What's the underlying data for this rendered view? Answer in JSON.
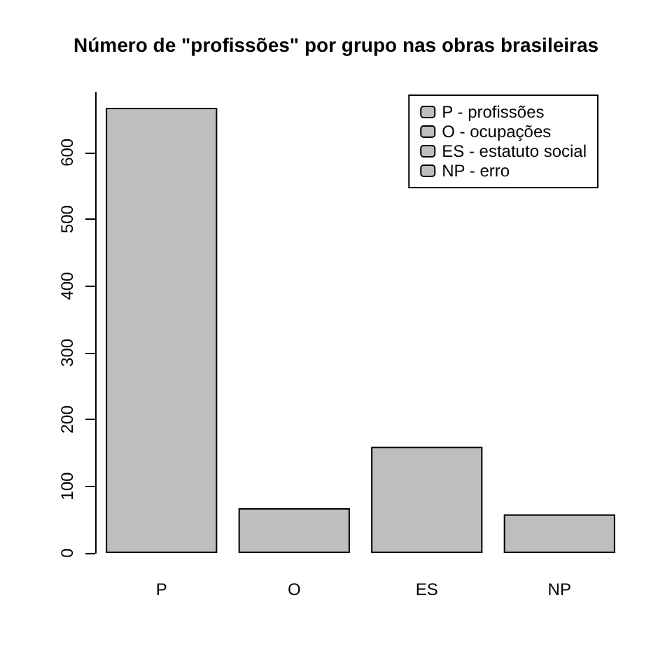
{
  "chart_data": {
    "type": "bar",
    "title": "Número de \"profissões\" por grupo nas obras brasileiras",
    "categories": [
      "P",
      "O",
      "ES",
      "NP"
    ],
    "series": [
      {
        "name": "P - profissões",
        "color": "#bebebe",
        "values": [
          667,
          null,
          null,
          null
        ]
      },
      {
        "name": "O - ocupações",
        "color": "#bebebe",
        "values": [
          null,
          67,
          null,
          null
        ]
      },
      {
        "name": "ES - estatuto social",
        "color": "#bebebe",
        "values": [
          null,
          null,
          159,
          null
        ]
      },
      {
        "name": "NP - erro",
        "color": "#bebebe",
        "values": [
          null,
          null,
          null,
          58
        ]
      }
    ],
    "ylim": [
      0,
      690
    ],
    "yticks": [
      0,
      100,
      200,
      300,
      400,
      500,
      600
    ],
    "grid": false,
    "legend": "top right"
  }
}
